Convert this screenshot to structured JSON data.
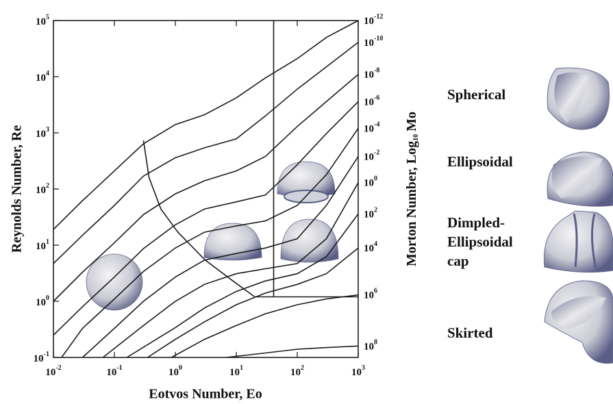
{
  "chart_data": {
    "type": "line",
    "xlabel": "Eotvos Number, Eo",
    "ylabel": "Reynolds Number, Re",
    "y2label": {
      "text": "Morton Number, Log",
      "subscript": "10",
      "after": "Mo"
    },
    "xscale": "log",
    "yscale": "log",
    "xlim": [
      0.01,
      1000
    ],
    "ylim": [
      0.1,
      100000
    ],
    "xticks": [
      {
        "value": 0.01,
        "label": "10",
        "exponent": "-2"
      },
      {
        "value": 0.1,
        "label": "10",
        "exponent": "-1"
      },
      {
        "value": 1,
        "label": "10",
        "exponent": "0"
      },
      {
        "value": 10,
        "label": "10",
        "exponent": "1"
      },
      {
        "value": 100,
        "label": "10",
        "exponent": "2"
      },
      {
        "value": 1000,
        "label": "10",
        "exponent": "3"
      }
    ],
    "yticks": [
      {
        "value": 0.1,
        "label": "10",
        "exponent": "-1"
      },
      {
        "value": 1,
        "label": "10",
        "exponent": "0"
      },
      {
        "value": 10,
        "label": "10",
        "exponent": "1"
      },
      {
        "value": 100,
        "label": "10",
        "exponent": "2"
      },
      {
        "value": 1000,
        "label": "10",
        "exponent": "3"
      },
      {
        "value": 10000,
        "label": "10",
        "exponent": "4"
      },
      {
        "value": 100000,
        "label": "10",
        "exponent": "5"
      }
    ],
    "color": "#1a1a1a",
    "series": [
      {
        "label": "10",
        "exponent": "-12",
        "x": [
          0.01,
          0.03,
          0.1,
          0.3,
          1,
          3,
          10,
          30,
          100,
          300,
          1000
        ],
        "values": [
          19,
          62,
          210,
          640,
          1400,
          2100,
          4200,
          9500,
          21000,
          50000,
          100000
        ]
      },
      {
        "label": "10",
        "exponent": "-10",
        "x": [
          0.01,
          0.03,
          0.1,
          0.3,
          1,
          3,
          10,
          30,
          100,
          300,
          1000
        ],
        "values": [
          4.7,
          15,
          51,
          170,
          360,
          540,
          780,
          2000,
          6000,
          15000,
          41000
        ]
      },
      {
        "label": "10",
        "exponent": "-8",
        "x": [
          0.01,
          0.03,
          0.1,
          0.3,
          1,
          3,
          10,
          30,
          100,
          300,
          1000
        ],
        "values": [
          1,
          3.3,
          11,
          35,
          82,
          140,
          210,
          380,
          1300,
          3600,
          11000
        ]
      },
      {
        "label": "10",
        "exponent": "-6",
        "x": [
          0.01,
          0.03,
          0.1,
          0.3,
          1,
          3,
          10,
          30,
          100,
          300,
          1000
        ],
        "values": [
          0.25,
          0.8,
          2.7,
          8.7,
          23,
          44,
          59,
          78,
          270,
          970,
          3600
        ]
      },
      {
        "label": "10",
        "exponent": "-4",
        "x": [
          0.0136,
          0.03,
          0.1,
          0.3,
          1,
          3,
          10,
          30,
          100,
          300,
          1000
        ],
        "values": [
          0.1,
          0.33,
          1.1,
          3.4,
          8.9,
          17,
          22,
          27,
          51,
          180,
          1200
        ]
      },
      {
        "label": "10",
        "exponent": "-2",
        "x": [
          0.03,
          0.1,
          0.3,
          1,
          3,
          10,
          30,
          100,
          300,
          1000
        ],
        "values": [
          0.1,
          0.33,
          1,
          2.7,
          5.4,
          7.1,
          8.9,
          13,
          51,
          380
        ]
      },
      {
        "label": "10",
        "exponent": "0",
        "x": [
          0.065,
          0.3,
          1,
          3,
          10,
          30,
          100,
          300,
          1000
        ],
        "values": [
          0.1,
          0.37,
          1,
          2,
          3.1,
          3.8,
          4.7,
          13,
          130
        ]
      },
      {
        "label": "10",
        "exponent": "2",
        "x": [
          0.16,
          1,
          3,
          10,
          30,
          100,
          300,
          1000
        ],
        "values": [
          0.1,
          0.34,
          0.76,
          1.5,
          2.3,
          3.1,
          6.2,
          36
        ]
      },
      {
        "label": "10",
        "exponent": "4",
        "x": [
          0.35,
          1,
          3,
          10,
          30,
          100,
          300,
          1000
        ],
        "values": [
          0.1,
          0.21,
          0.43,
          0.87,
          1.4,
          2,
          3.1,
          8.9
        ]
      },
      {
        "label": "10",
        "exponent": "6",
        "x": [
          0.86,
          3,
          10,
          30,
          100,
          300,
          1000
        ],
        "values": [
          0.1,
          0.21,
          0.37,
          0.6,
          0.87,
          1.1,
          1.3
        ]
      },
      {
        "label": "10",
        "exponent": "8",
        "x": [
          6.8,
          30,
          100,
          300,
          1000
        ],
        "values": [
          0.1,
          0.12,
          0.14,
          0.15,
          0.16
        ]
      },
      {
        "x": [
          0.3,
          0.37,
          0.58,
          1.1,
          3.1,
          8.8,
          20,
          1000
        ],
        "values": [
          730,
          160,
          44,
          17,
          5.4,
          2.3,
          1.2,
          1.2
        ]
      },
      {
        "x": [
          41,
          41
        ],
        "values": [
          1.2,
          100000
        ]
      }
    ]
  },
  "shape_legend": [
    {
      "lines": [
        "Spherical"
      ]
    },
    {
      "lines": [
        "Ellipsoidal"
      ]
    },
    {
      "lines": [
        "Dimpled-",
        "Ellipsoidal",
        "cap"
      ]
    },
    {
      "lines": [
        "Skirted"
      ]
    }
  ]
}
